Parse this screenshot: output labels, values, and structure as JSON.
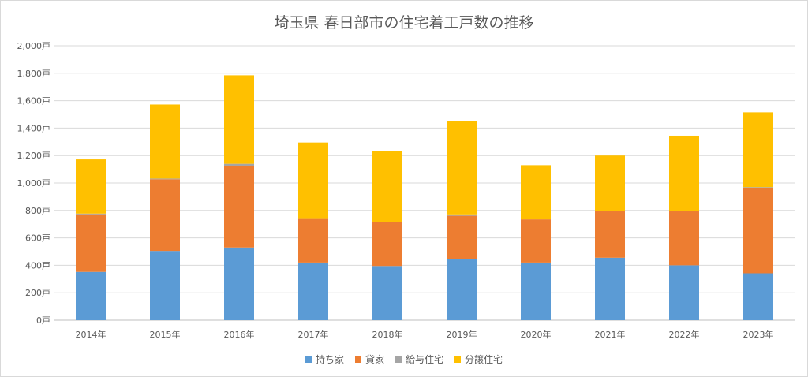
{
  "chart_data": {
    "type": "bar",
    "stacked": true,
    "title": "埼玉県 春日部市の住宅着工戸数の推移",
    "categories": [
      "2014年",
      "2015年",
      "2016年",
      "2017年",
      "2018年",
      "2019年",
      "2020年",
      "2021年",
      "2022年",
      "2023年"
    ],
    "series": [
      {
        "name": "持ち家",
        "color": "#5B9BD5",
        "values": [
          352,
          505,
          530,
          420,
          395,
          448,
          420,
          455,
          400,
          342
        ]
      },
      {
        "name": "貸家",
        "color": "#ED7D31",
        "values": [
          420,
          522,
          595,
          318,
          320,
          313,
          315,
          343,
          398,
          620
        ]
      },
      {
        "name": "給与住宅",
        "color": "#A5A5A5",
        "values": [
          5,
          5,
          15,
          0,
          0,
          10,
          0,
          0,
          0,
          8
        ]
      },
      {
        "name": "分譲住宅",
        "color": "#FFC000",
        "values": [
          395,
          540,
          645,
          557,
          520,
          680,
          395,
          402,
          547,
          545
        ]
      }
    ],
    "ylim": [
      0,
      2000
    ],
    "yticks": [
      0,
      200,
      400,
      600,
      800,
      1000,
      1200,
      1400,
      1600,
      1800,
      2000
    ],
    "ytick_labels": [
      "0戸",
      "200戸",
      "400戸",
      "600戸",
      "800戸",
      "1,000戸",
      "1,200戸",
      "1,400戸",
      "1,600戸",
      "1,800戸",
      "2,000戸"
    ],
    "legend_position": "bottom",
    "grid": true
  }
}
